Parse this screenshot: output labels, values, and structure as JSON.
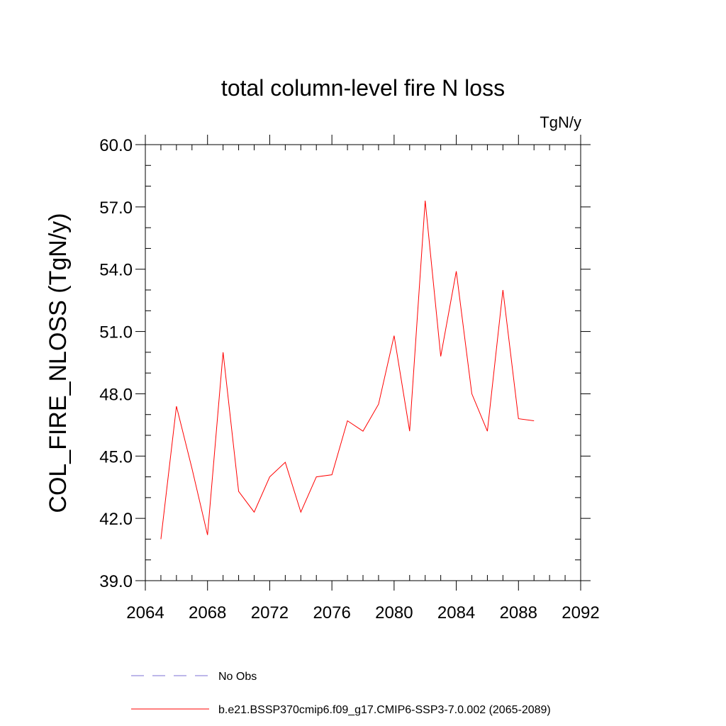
{
  "chart_data": {
    "type": "line",
    "title": "total column-level fire N loss",
    "units_label": "TgN/y",
    "xlabel": "",
    "ylabel": "COL_FIRE_NLOSS  (TgN/y)",
    "xlim": [
      2064,
      2092
    ],
    "ylim": [
      39.0,
      60.0
    ],
    "x_ticks": [
      2064,
      2068,
      2072,
      2076,
      2080,
      2084,
      2088,
      2092
    ],
    "y_ticks": [
      39.0,
      42.0,
      45.0,
      48.0,
      51.0,
      54.0,
      57.0,
      60.0
    ],
    "x_minor_step": 1,
    "y_minor_step": 1,
    "grid": false,
    "legend_position": "bottom",
    "series": [
      {
        "name": "b.e21.BSSP370cmip6.f09_g17.CMIP6-SSP3-7.0.002 (2065-2089)",
        "color": "#ff0000",
        "dash": "solid",
        "x": [
          2065,
          2066,
          2067,
          2068,
          2069,
          2070,
          2071,
          2072,
          2073,
          2074,
          2075,
          2076,
          2077,
          2078,
          2079,
          2080,
          2081,
          2082,
          2083,
          2084,
          2085,
          2086,
          2087,
          2088,
          2089
        ],
        "values": [
          41.0,
          47.4,
          44.4,
          41.2,
          50.0,
          43.3,
          42.3,
          44.0,
          44.7,
          42.3,
          44.0,
          44.1,
          46.7,
          46.2,
          47.5,
          50.8,
          46.2,
          57.3,
          49.8,
          53.9,
          48.0,
          46.2,
          53.0,
          46.8,
          46.7
        ]
      }
    ],
    "legend": [
      {
        "label": "No Obs",
        "color": "#7b6fd6",
        "dash": "dashed"
      },
      {
        "label": "b.e21.BSSP370cmip6.f09_g17.CMIP6-SSP3-7.0.002 (2065-2089)",
        "color": "#ff0000",
        "dash": "solid"
      }
    ]
  }
}
